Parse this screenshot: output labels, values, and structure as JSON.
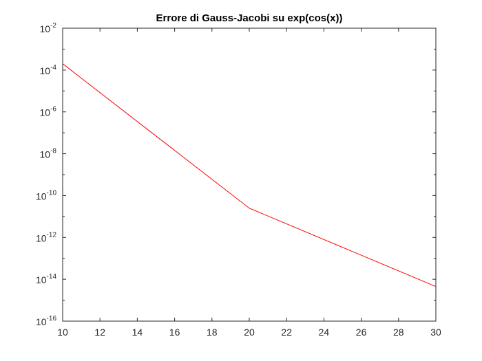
{
  "chart_data": {
    "type": "line",
    "title": "Errore di Gauss-Jacobi su exp(cos(x))",
    "xlabel": "",
    "ylabel": "",
    "xlim": [
      10,
      30
    ],
    "ylim": [
      1e-16,
      0.01
    ],
    "yscale": "log",
    "grid": false,
    "xticks": [
      10,
      12,
      14,
      16,
      18,
      20,
      22,
      24,
      26,
      28,
      30
    ],
    "xtick_labels": [
      "10",
      "12",
      "14",
      "16",
      "18",
      "20",
      "22",
      "24",
      "26",
      "28",
      "30"
    ],
    "yticks": [
      {
        "base": "10",
        "exp": "-2",
        "value": 0.01
      },
      {
        "base": "10",
        "exp": "-4",
        "value": 0.0001
      },
      {
        "base": "10",
        "exp": "-6",
        "value": 1e-06
      },
      {
        "base": "10",
        "exp": "-8",
        "value": 1e-08
      },
      {
        "base": "10",
        "exp": "-10",
        "value": 1e-10
      },
      {
        "base": "10",
        "exp": "-12",
        "value": 1e-12
      },
      {
        "base": "10",
        "exp": "-14",
        "value": 1e-14
      },
      {
        "base": "10",
        "exp": "-16",
        "value": 1e-16
      }
    ],
    "series": [
      {
        "color": "#ff0000",
        "x": [
          10,
          20,
          30
        ],
        "y": [
          0.0002,
          2.5e-11,
          4.5e-15
        ]
      }
    ]
  }
}
